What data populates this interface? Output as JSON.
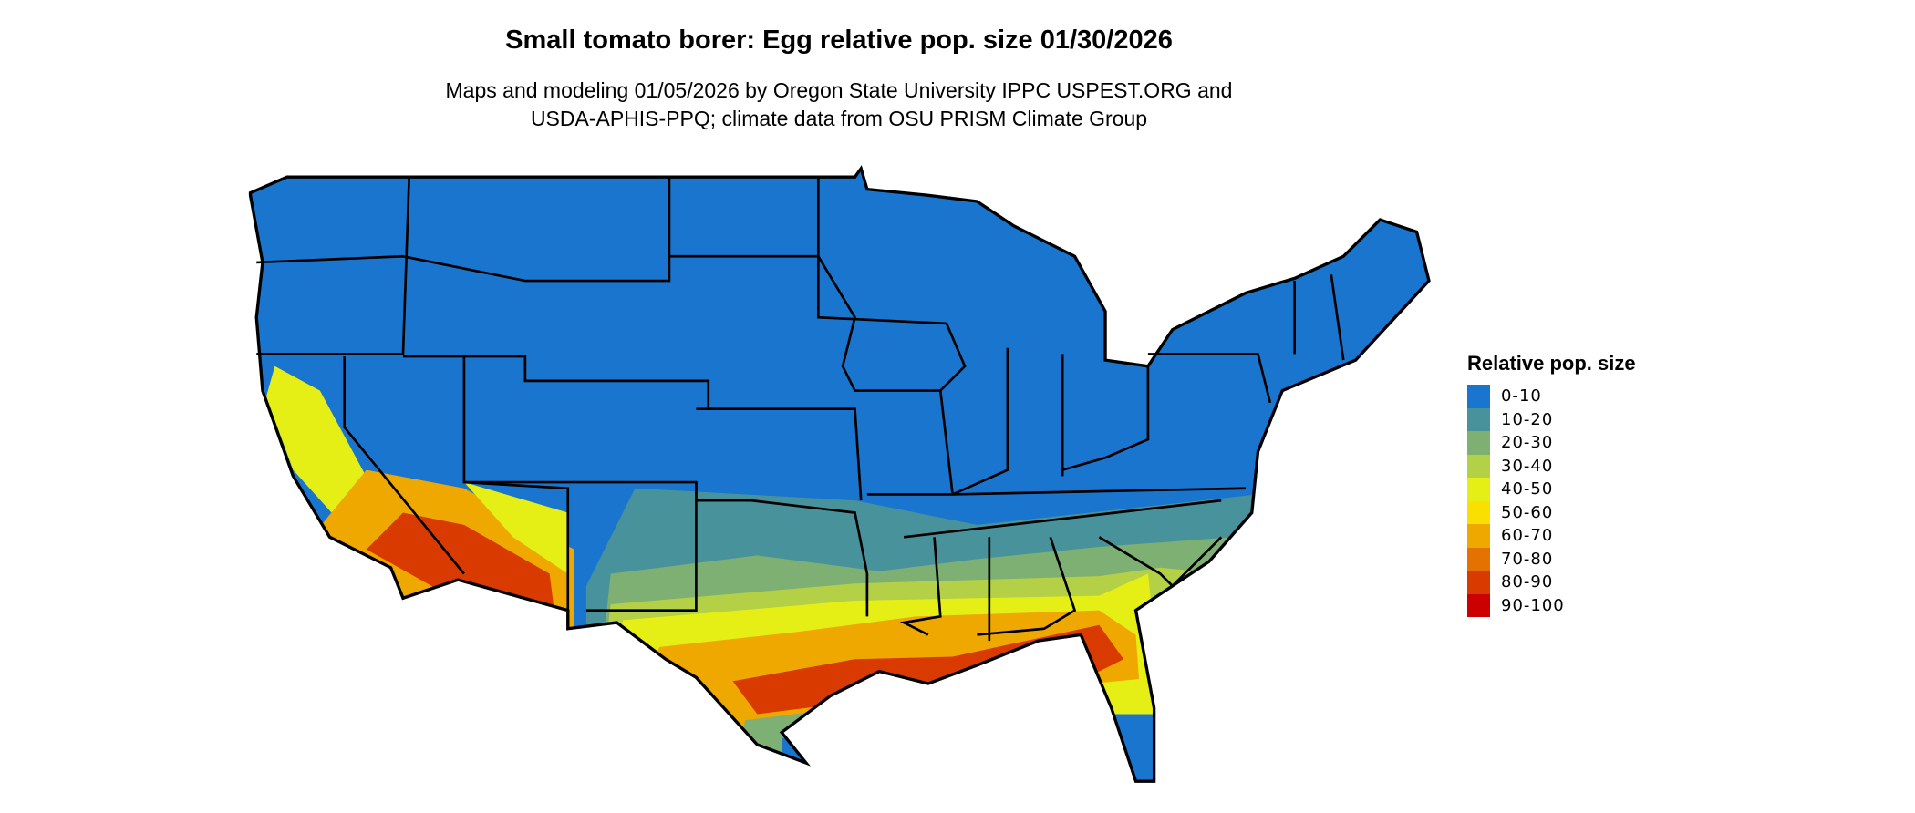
{
  "title": "Small tomato borer: Egg relative pop. size 01/30/2026",
  "subtitle_line1": "Maps and modeling 01/05/2026 by Oregon State University IPPC USPEST.ORG and",
  "subtitle_line2": "USDA-APHIS-PPQ; climate data from OSU PRISM Climate Group",
  "legend": {
    "title": "Relative pop. size",
    "items": [
      {
        "label": "0-10",
        "color": "#1a75cf"
      },
      {
        "label": "10-20",
        "color": "#48929c"
      },
      {
        "label": "20-30",
        "color": "#7eaf73"
      },
      {
        "label": "30-40",
        "color": "#b3d047"
      },
      {
        "label": "40-50",
        "color": "#e5ef16"
      },
      {
        "label": "50-60",
        "color": "#f9e000"
      },
      {
        "label": "60-70",
        "color": "#efa800"
      },
      {
        "label": "70-80",
        "color": "#e37200"
      },
      {
        "label": "80-90",
        "color": "#d93a00"
      },
      {
        "label": "90-100",
        "color": "#cc0000"
      }
    ]
  }
}
